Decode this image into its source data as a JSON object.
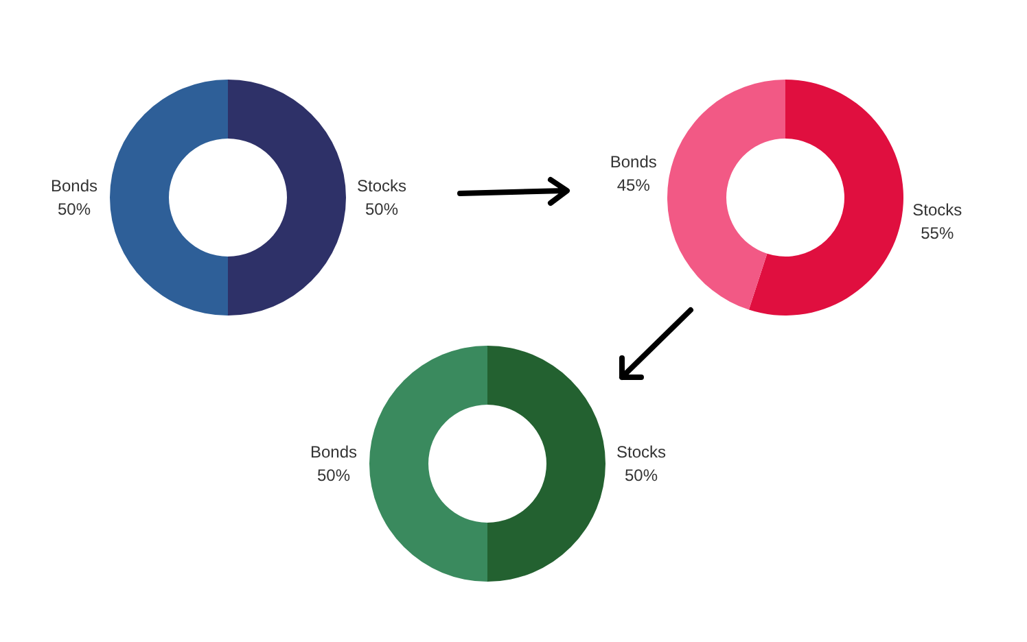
{
  "chart_data": [
    {
      "type": "donut",
      "categories": [
        "Stocks",
        "Bonds"
      ],
      "values": [
        50,
        50
      ],
      "colors": [
        "#2e3168",
        "#2e5f98"
      ],
      "value_labels": [
        "50%",
        "50%"
      ],
      "legend": false
    },
    {
      "type": "donut",
      "categories": [
        "Stocks",
        "Bonds"
      ],
      "values": [
        55,
        45
      ],
      "colors": [
        "#e00f3f",
        "#f25985"
      ],
      "value_labels": [
        "55%",
        "45%"
      ],
      "legend": false
    },
    {
      "type": "donut",
      "categories": [
        "Stocks",
        "Bonds"
      ],
      "values": [
        50,
        50
      ],
      "colors": [
        "#236130",
        "#3a8a5e"
      ],
      "value_labels": [
        "50%",
        "50%"
      ],
      "legend": false
    }
  ]
}
